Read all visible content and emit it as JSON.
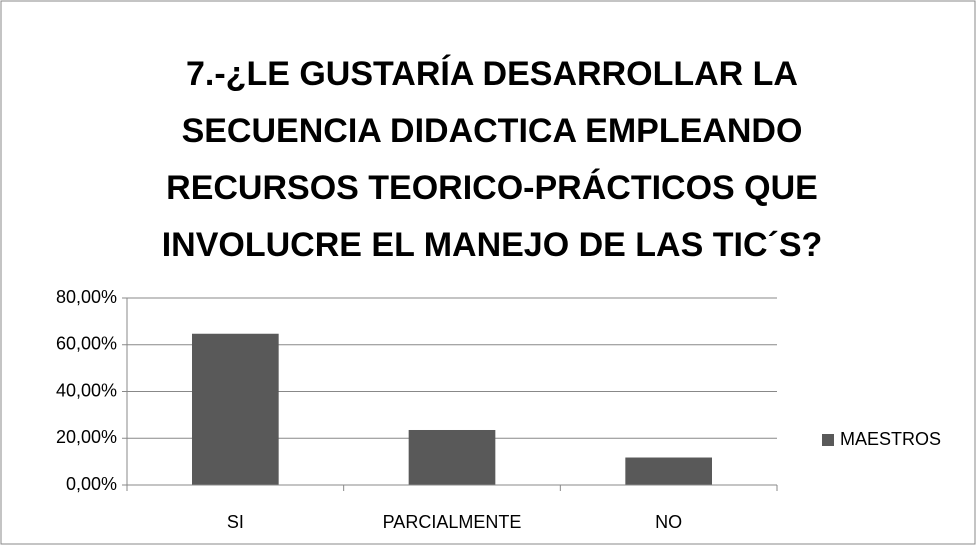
{
  "chart_data": {
    "type": "bar",
    "title": [
      "7.-¿LE  GUSTARÍA DESARROLLAR  LA",
      "SECUENCIA  DIDACTICA EMPLEANDO",
      "RECURSOS TEORICO-PRÁCTICOS QUE",
      "INVOLUCRE  EL MANEJO DE LAS TIC´S?"
    ],
    "categories": [
      "SI",
      "PARCIALMENTE",
      "NO"
    ],
    "series": [
      {
        "name": "MAESTROS",
        "color": "#595959",
        "values": [
          64.71,
          23.53,
          11.76
        ]
      }
    ],
    "ylim": [
      0,
      80
    ],
    "yticks": [
      {
        "value": 0,
        "label": "0,00%"
      },
      {
        "value": 20,
        "label": "20,00%"
      },
      {
        "value": 40,
        "label": "40,00%"
      },
      {
        "value": 60,
        "label": "60,00%"
      },
      {
        "value": 80,
        "label": "80,00%"
      }
    ],
    "grid": true,
    "legend": "right"
  }
}
